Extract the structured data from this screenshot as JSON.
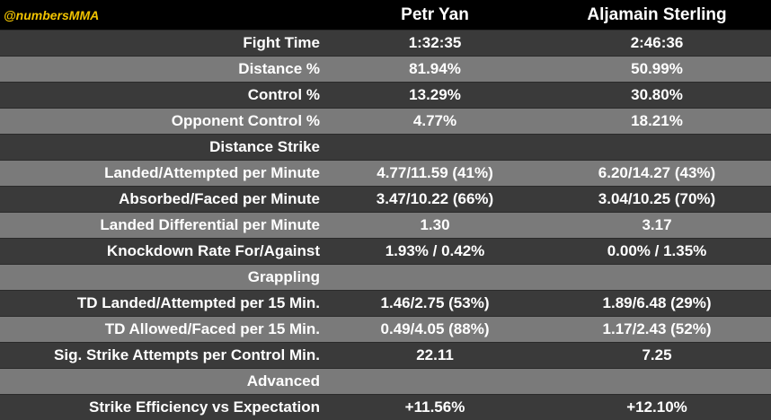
{
  "header": {
    "brand": "@numbersMMA",
    "fighter_a": "Petr Yan",
    "fighter_b": "Aljamain Sterling"
  },
  "rows": [
    {
      "label": "Fight Time",
      "a": "1:32:35",
      "b": "2:46:36"
    },
    {
      "label": "Distance %",
      "a": "81.94%",
      "b": "50.99%"
    },
    {
      "label": "Control %",
      "a": "13.29%",
      "b": "30.80%"
    },
    {
      "label": "Opponent Control %",
      "a": "4.77%",
      "b": "18.21%"
    },
    {
      "label": "Distance Strike",
      "a": "",
      "b": ""
    },
    {
      "label": "Landed/Attempted per Minute",
      "a": "4.77/11.59 (41%)",
      "b": "6.20/14.27 (43%)"
    },
    {
      "label": "Absorbed/Faced per Minute",
      "a": "3.47/10.22 (66%)",
      "b": "3.04/10.25 (70%)"
    },
    {
      "label": "Landed Differential per Minute",
      "a": "1.30",
      "b": "3.17"
    },
    {
      "label": "Knockdown Rate For/Against",
      "a": "1.93% / 0.42%",
      "b": "0.00% / 1.35%"
    },
    {
      "label": "Grappling",
      "a": "",
      "b": ""
    },
    {
      "label": "TD Landed/Attempted per 15 Min.",
      "a": "1.46/2.75 (53%)",
      "b": "1.89/6.48 (29%)"
    },
    {
      "label": "TD Allowed/Faced per 15 Min.",
      "a": "0.49/4.05 (88%)",
      "b": "1.17/2.43 (52%)"
    },
    {
      "label": "Sig. Strike Attempts per Control Min.",
      "a": "22.11",
      "b": "7.25"
    },
    {
      "label": "Advanced",
      "a": "",
      "b": ""
    },
    {
      "label": "Strike Efficiency vs Expectation",
      "a": "+11.56%",
      "b": "+12.10%"
    }
  ],
  "colors": {
    "brand": "#f2c400",
    "row_dark": "#3a3a3a",
    "row_light": "#7a7a7a",
    "header_bg": "#000000"
  }
}
